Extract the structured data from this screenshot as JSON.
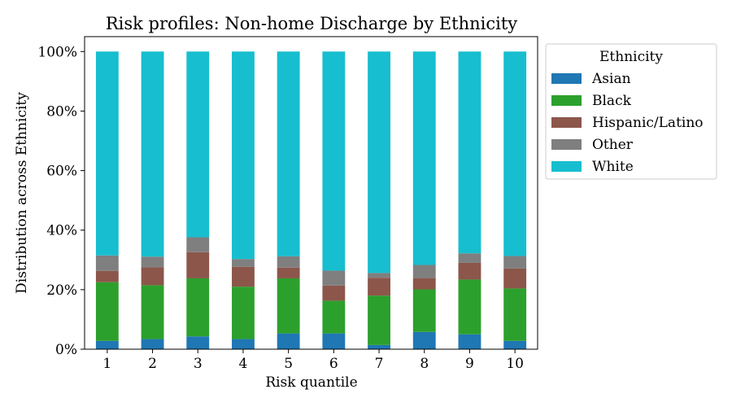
{
  "chart_data": {
    "type": "bar",
    "stacked": true,
    "title": "Risk profiles: Non-home Discharge by Ethnicity",
    "xlabel": "Risk quantile",
    "ylabel": "Distribution across Ethnicity",
    "ylim": [
      0,
      1.05
    ],
    "yticks": [
      "0%",
      "20%",
      "40%",
      "60%",
      "80%",
      "100%"
    ],
    "ytick_values": [
      0,
      0.2,
      0.4,
      0.6,
      0.8,
      1.0
    ],
    "categories": [
      "1",
      "2",
      "3",
      "4",
      "5",
      "6",
      "7",
      "8",
      "9",
      "10"
    ],
    "legend": {
      "title": "Ethnicity",
      "placement": "outside-right"
    },
    "grid": false,
    "series": [
      {
        "name": "Asian",
        "color": "#1f77b4",
        "values": [
          0.028,
          0.034,
          0.043,
          0.034,
          0.053,
          0.053,
          0.014,
          0.058,
          0.05,
          0.028
        ]
      },
      {
        "name": "Black",
        "color": "#2ca02c",
        "values": [
          0.197,
          0.181,
          0.195,
          0.176,
          0.185,
          0.11,
          0.166,
          0.143,
          0.184,
          0.176
        ]
      },
      {
        "name": "Hispanic/Latino",
        "color": "#8c564b",
        "values": [
          0.038,
          0.06,
          0.088,
          0.067,
          0.036,
          0.051,
          0.06,
          0.038,
          0.056,
          0.067
        ]
      },
      {
        "name": "Other",
        "color": "#7f7f7f",
        "values": [
          0.052,
          0.036,
          0.05,
          0.026,
          0.038,
          0.05,
          0.016,
          0.044,
          0.032,
          0.042
        ]
      },
      {
        "name": "White",
        "color": "#17becf",
        "values": [
          0.685,
          0.689,
          0.624,
          0.697,
          0.688,
          0.736,
          0.744,
          0.717,
          0.678,
          0.687
        ]
      }
    ]
  }
}
